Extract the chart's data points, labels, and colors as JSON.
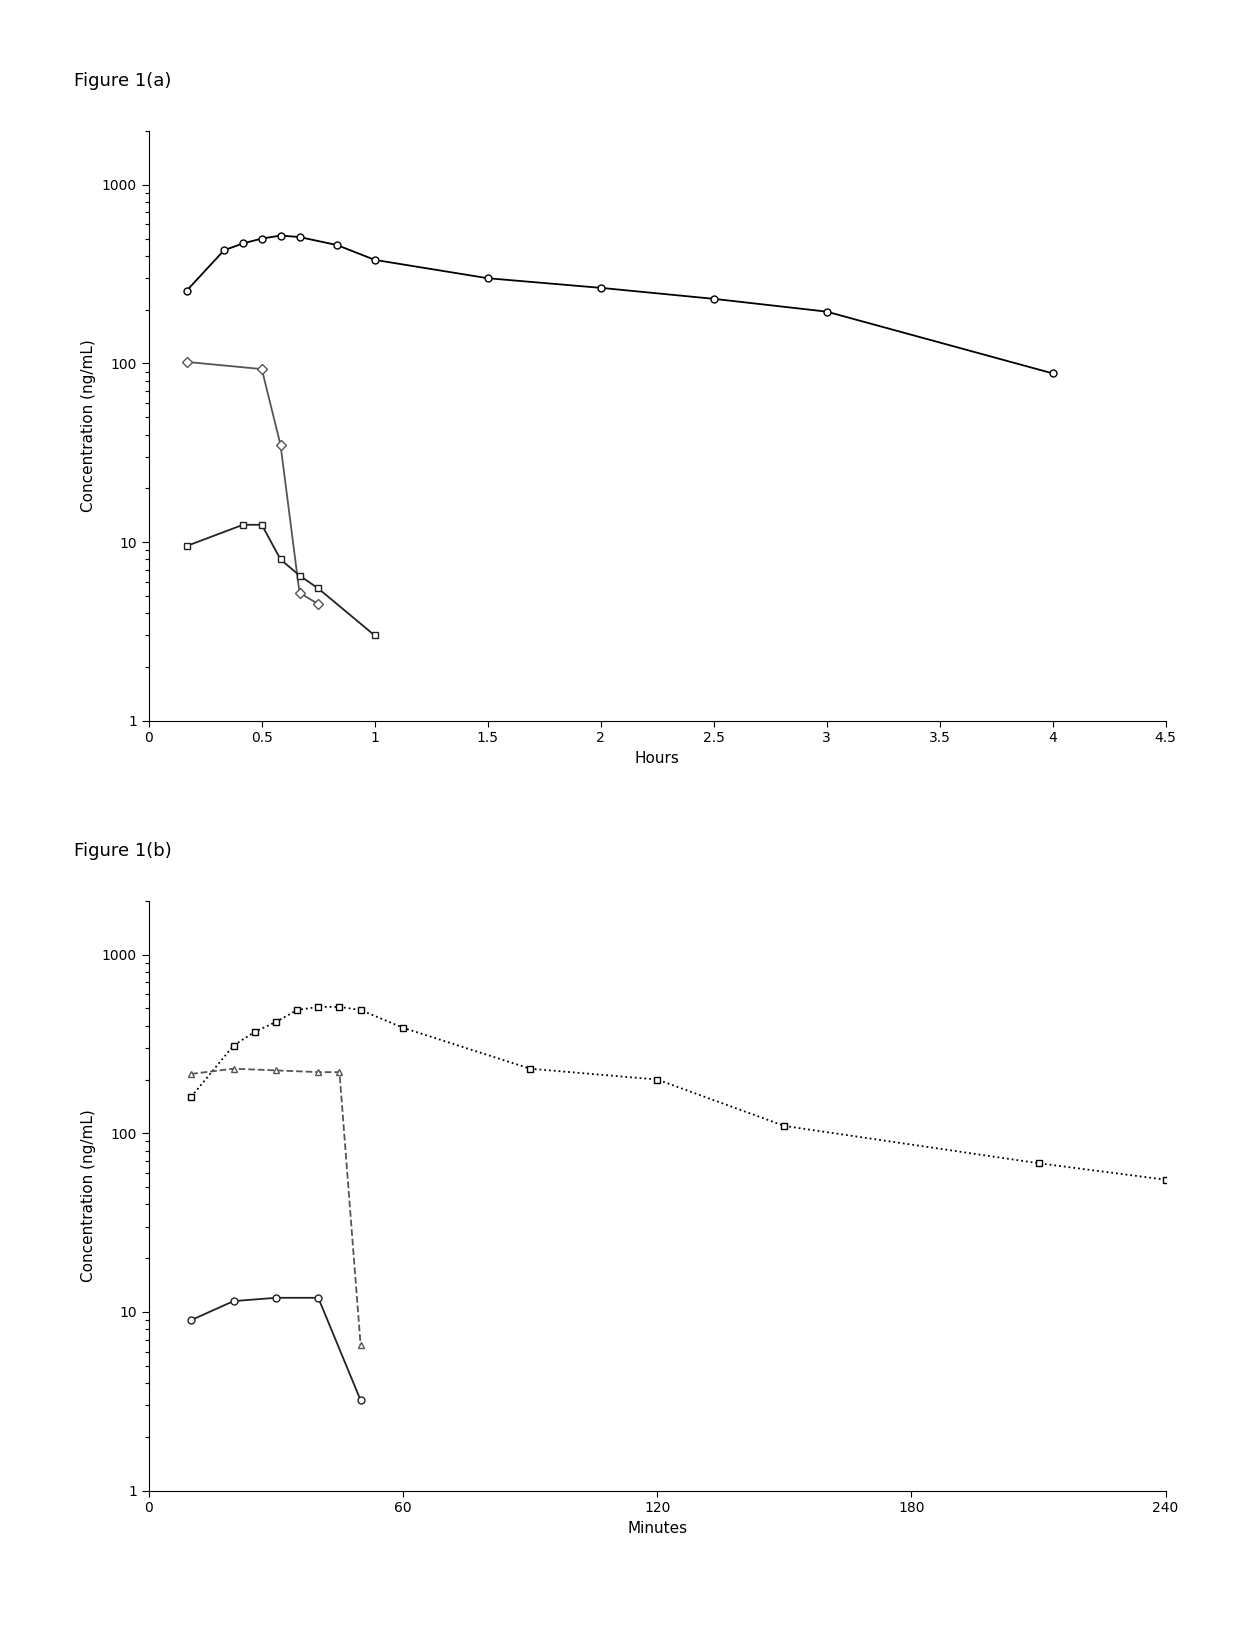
{
  "fig_a": {
    "title": "Figure 1(a)",
    "xlabel": "Hours",
    "ylabel": "Concentration (ng/mL)",
    "xlim": [
      0,
      4.5
    ],
    "ylim": [
      1,
      2000
    ],
    "xticks": [
      0,
      0.5,
      1.0,
      1.5,
      2.0,
      2.5,
      3.0,
      3.5,
      4.0,
      4.5
    ],
    "xtick_labels": [
      "0",
      "0.5",
      "1",
      "1.5",
      "2",
      "2.5",
      "3",
      "3.5",
      "4",
      "4.5"
    ],
    "series": [
      {
        "name": "circle_black",
        "x": [
          0.167,
          0.333,
          0.417,
          0.5,
          0.583,
          0.667,
          0.833,
          1.0,
          1.5,
          2.0,
          2.5,
          3.0,
          4.0
        ],
        "y": [
          255,
          430,
          470,
          500,
          520,
          510,
          460,
          380,
          300,
          265,
          230,
          195,
          88
        ],
        "color": "black",
        "linestyle": "-",
        "marker": "o",
        "markersize": 5,
        "markerfacecolor": "white",
        "markeredgecolor": "black",
        "linewidth": 1.3
      },
      {
        "name": "diamond_gray",
        "x": [
          0.167,
          0.5,
          0.583,
          0.667,
          0.75
        ],
        "y": [
          102,
          93,
          35,
          5.2,
          4.5
        ],
        "color": "#555555",
        "linestyle": "-",
        "marker": "D",
        "markersize": 5,
        "markerfacecolor": "white",
        "markeredgecolor": "#555555",
        "linewidth": 1.3
      },
      {
        "name": "square_dark",
        "x": [
          0.167,
          0.417,
          0.5,
          0.583,
          0.667,
          0.75,
          1.0
        ],
        "y": [
          9.5,
          12.5,
          12.5,
          8.0,
          6.5,
          5.5,
          3.0
        ],
        "color": "#222222",
        "linestyle": "-",
        "marker": "s",
        "markersize": 5,
        "markerfacecolor": "white",
        "markeredgecolor": "#222222",
        "linewidth": 1.3
      }
    ]
  },
  "fig_b": {
    "title": "Figure 1(b)",
    "xlabel": "Minutes",
    "ylabel": "Concentration (ng/mL)",
    "xlim": [
      0,
      240
    ],
    "ylim": [
      1,
      2000
    ],
    "xticks": [
      0,
      60,
      120,
      180,
      240
    ],
    "xtick_labels": [
      "0",
      "60",
      "120",
      "180",
      "240"
    ],
    "series": [
      {
        "name": "square_dotted",
        "x": [
          10,
          20,
          25,
          30,
          35,
          40,
          45,
          50,
          60,
          90,
          120,
          150,
          210,
          240
        ],
        "y": [
          160,
          310,
          370,
          420,
          490,
          510,
          510,
          490,
          390,
          230,
          200,
          110,
          68,
          55
        ],
        "color": "black",
        "linestyle": ":",
        "marker": "s",
        "markersize": 5,
        "markerfacecolor": "white",
        "markeredgecolor": "black",
        "linewidth": 1.3
      },
      {
        "name": "triangle_dashed",
        "x": [
          10,
          20,
          30,
          40,
          45,
          50
        ],
        "y": [
          215,
          230,
          225,
          220,
          220,
          6.5
        ],
        "color": "#555555",
        "linestyle": "--",
        "marker": "^",
        "markersize": 5,
        "markerfacecolor": "white",
        "markeredgecolor": "#555555",
        "linewidth": 1.3
      },
      {
        "name": "circle_solid",
        "x": [
          10,
          20,
          30,
          40,
          50
        ],
        "y": [
          9.0,
          11.5,
          12.0,
          12.0,
          3.2
        ],
        "color": "#222222",
        "linestyle": "-",
        "marker": "o",
        "markersize": 5,
        "markerfacecolor": "white",
        "markeredgecolor": "#222222",
        "linewidth": 1.3
      }
    ]
  },
  "background_color": "white",
  "figure_label_fontsize": 13,
  "axis_label_fontsize": 11,
  "tick_fontsize": 10
}
